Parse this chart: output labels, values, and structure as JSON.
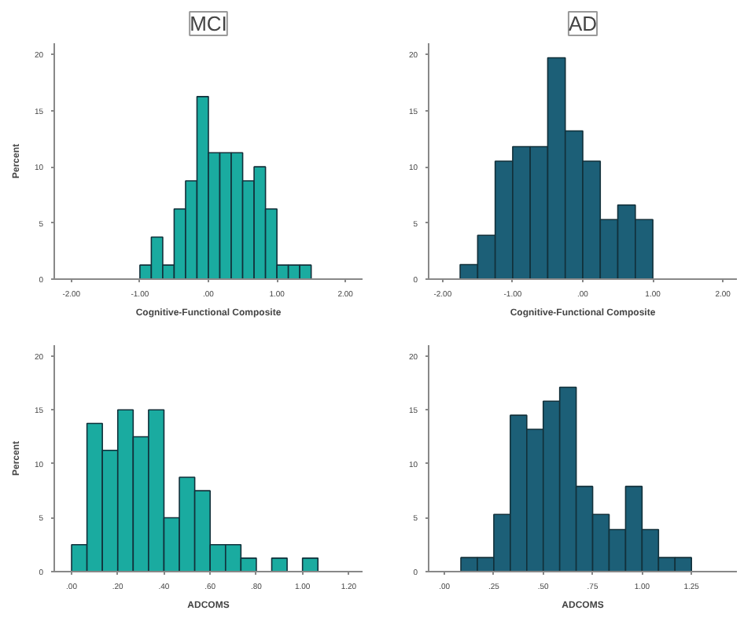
{
  "chart_data": [
    {
      "type": "histogram",
      "title": "MCI",
      "xlabel": "Cognitive-Functional Composite",
      "ylabel": "Percent",
      "color": "#1aaba0",
      "grid": false,
      "bins": [
        -1.0,
        -0.8333,
        -0.6667,
        -0.5,
        -0.3333,
        -0.1667,
        0.0,
        0.1667,
        0.3333,
        0.5,
        0.6667,
        0.8333,
        1.0,
        1.1667,
        1.3333,
        1.5
      ],
      "values": [
        1.25,
        3.75,
        1.25,
        6.25,
        8.75,
        16.25,
        11.25,
        11.25,
        11.25,
        8.75,
        10,
        6.25,
        1.25,
        1.25,
        1.25
      ],
      "xlim": [
        -2.25,
        2.25
      ],
      "ylim": [
        0,
        21
      ],
      "xticks": [
        {
          "value": -2,
          "label": "-2.00"
        },
        {
          "value": -1,
          "label": "-1.00"
        },
        {
          "value": 0,
          "label": ".00"
        },
        {
          "value": 1,
          "label": "1.00"
        },
        {
          "value": 2,
          "label": "2.00"
        }
      ],
      "yticks": [
        0,
        5,
        10,
        15,
        20
      ]
    },
    {
      "type": "histogram",
      "title": "AD",
      "xlabel": "Cognitive-Functional Composite",
      "color": "#1c5f77",
      "grid": false,
      "bins": [
        -1.75,
        -1.5,
        -1.25,
        -1.0,
        -0.75,
        -0.5,
        -0.25,
        0.0,
        0.25,
        0.5,
        0.75,
        1.0
      ],
      "values": [
        1.3,
        3.9,
        10.5,
        11.8,
        11.8,
        19.7,
        13.2,
        10.5,
        5.3,
        6.6,
        5.3
      ],
      "xlim": [
        -2.2,
        2.2
      ],
      "ylim": [
        0,
        21
      ],
      "xticks": [
        {
          "value": -2,
          "label": "-2.00"
        },
        {
          "value": -1,
          "label": "-1.00"
        },
        {
          "value": 0,
          "label": ".00"
        },
        {
          "value": 1,
          "label": "1.00"
        },
        {
          "value": 2,
          "label": "2.00"
        }
      ],
      "yticks": [
        0,
        5,
        10,
        15,
        20
      ]
    },
    {
      "type": "histogram",
      "xlabel": "ADCOMS",
      "ylabel": "Percent",
      "color": "#1aaba0",
      "grid": false,
      "bins": [
        0.0,
        0.0667,
        0.1333,
        0.2,
        0.2667,
        0.3333,
        0.4,
        0.4667,
        0.5333,
        0.6,
        0.6667,
        0.7333,
        0.8,
        0.8667,
        0.9333,
        1.0,
        1.0667
      ],
      "values": [
        2.5,
        13.75,
        11.25,
        15,
        12.5,
        15,
        5,
        8.75,
        7.5,
        2.5,
        2.5,
        1.25,
        0,
        1.25,
        0,
        1.25
      ],
      "xlim": [
        -0.075,
        1.26
      ],
      "ylim": [
        0,
        21
      ],
      "xticks": [
        {
          "value": 0,
          "label": ".00"
        },
        {
          "value": 0.2,
          "label": ".20"
        },
        {
          "value": 0.4,
          "label": ".40"
        },
        {
          "value": 0.6,
          "label": ".60"
        },
        {
          "value": 0.8,
          "label": ".80"
        },
        {
          "value": 1.0,
          "label": "1.00"
        },
        {
          "value": 1.2,
          "label": "1.20"
        }
      ],
      "yticks": [
        0,
        5,
        10,
        15,
        20
      ]
    },
    {
      "type": "histogram",
      "xlabel": "ADCOMS",
      "color": "#1c5f77",
      "grid": false,
      "bins": [
        0.0833,
        0.1667,
        0.25,
        0.3333,
        0.4167,
        0.5,
        0.5833,
        0.6667,
        0.75,
        0.8333,
        0.9167,
        1.0,
        1.0833,
        1.1667,
        1.25
      ],
      "values": [
        1.3,
        1.3,
        5.3,
        14.5,
        13.2,
        15.8,
        17.1,
        7.9,
        5.3,
        3.9,
        7.9,
        3.9,
        1.3,
        1.3
      ],
      "xlim": [
        -0.08,
        1.48
      ],
      "ylim": [
        0,
        21
      ],
      "xticks": [
        {
          "value": 0,
          "label": ".00"
        },
        {
          "value": 0.25,
          "label": ".25"
        },
        {
          "value": 0.5,
          "label": ".50"
        },
        {
          "value": 0.75,
          "label": ".75"
        },
        {
          "value": 1.0,
          "label": "1.00"
        },
        {
          "value": 1.25,
          "label": "1.25"
        }
      ],
      "yticks": [
        0,
        5,
        10,
        15,
        20
      ]
    }
  ]
}
